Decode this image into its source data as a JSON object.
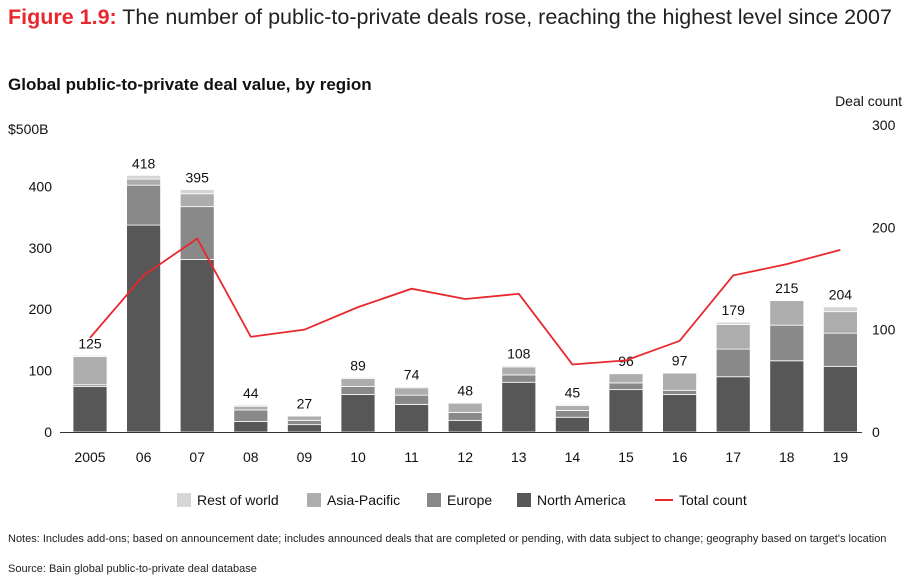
{
  "figure": {
    "number": "Figure 1.9:",
    "title": " The number of public-to-private deals rose, reaching the highest level since 2007"
  },
  "chart_data": {
    "type": "bar",
    "stacked": true,
    "title": "Global public-to-private deal value, by region",
    "ylabel_left": "$500B",
    "ylabel_right": "Deal count",
    "categories": [
      "2005",
      "06",
      "07",
      "08",
      "09",
      "10",
      "11",
      "12",
      "13",
      "14",
      "15",
      "16",
      "17",
      "18",
      "19"
    ],
    "ylim_left": [
      0,
      500
    ],
    "ylim_right": [
      0,
      300
    ],
    "yticks_left": [
      "0",
      "100",
      "200",
      "300",
      "400"
    ],
    "yticks_right": [
      "0",
      "100",
      "200",
      "300"
    ],
    "series": [
      {
        "name": "North America",
        "color": "#575757",
        "values": [
          74,
          337,
          281,
          17,
          12,
          61,
          45,
          19,
          81,
          24,
          69,
          61,
          90,
          116,
          107
        ]
      },
      {
        "name": "Europe",
        "color": "#898989",
        "values": [
          3,
          65,
          86,
          19,
          7,
          13,
          15,
          13,
          12,
          11,
          11,
          7,
          45,
          58,
          54
        ]
      },
      {
        "name": "Asia-Pacific",
        "color": "#adadad",
        "values": [
          46,
          10,
          21,
          6,
          7,
          13,
          12,
          15,
          13,
          8,
          15,
          28,
          40,
          40,
          35
        ]
      },
      {
        "name": "Rest of world",
        "color": "#d5d5d5",
        "values": [
          2,
          6,
          7,
          2,
          1,
          2,
          2,
          1,
          2,
          2,
          1,
          1,
          4,
          1,
          8
        ]
      }
    ],
    "totals": [
      "125",
      "418",
      "395",
      "44",
      "27",
      "89",
      "74",
      "48",
      "108",
      "45",
      "96",
      "97",
      "179",
      "215",
      "204"
    ],
    "line": {
      "name": "Total count",
      "color": "#e8282d",
      "axis": "right",
      "values": [
        92,
        153,
        189,
        93,
        100,
        122,
        140,
        130,
        135,
        66,
        70,
        89,
        153,
        164,
        178
      ]
    },
    "legend_position": "bottom",
    "grid": false
  },
  "notes": "Notes: Includes add-ons; based on announcement date; includes announced deals that are completed or pending, with data subject to change; geography based on target's location",
  "source": "Source: Bain global public-to-private deal database"
}
